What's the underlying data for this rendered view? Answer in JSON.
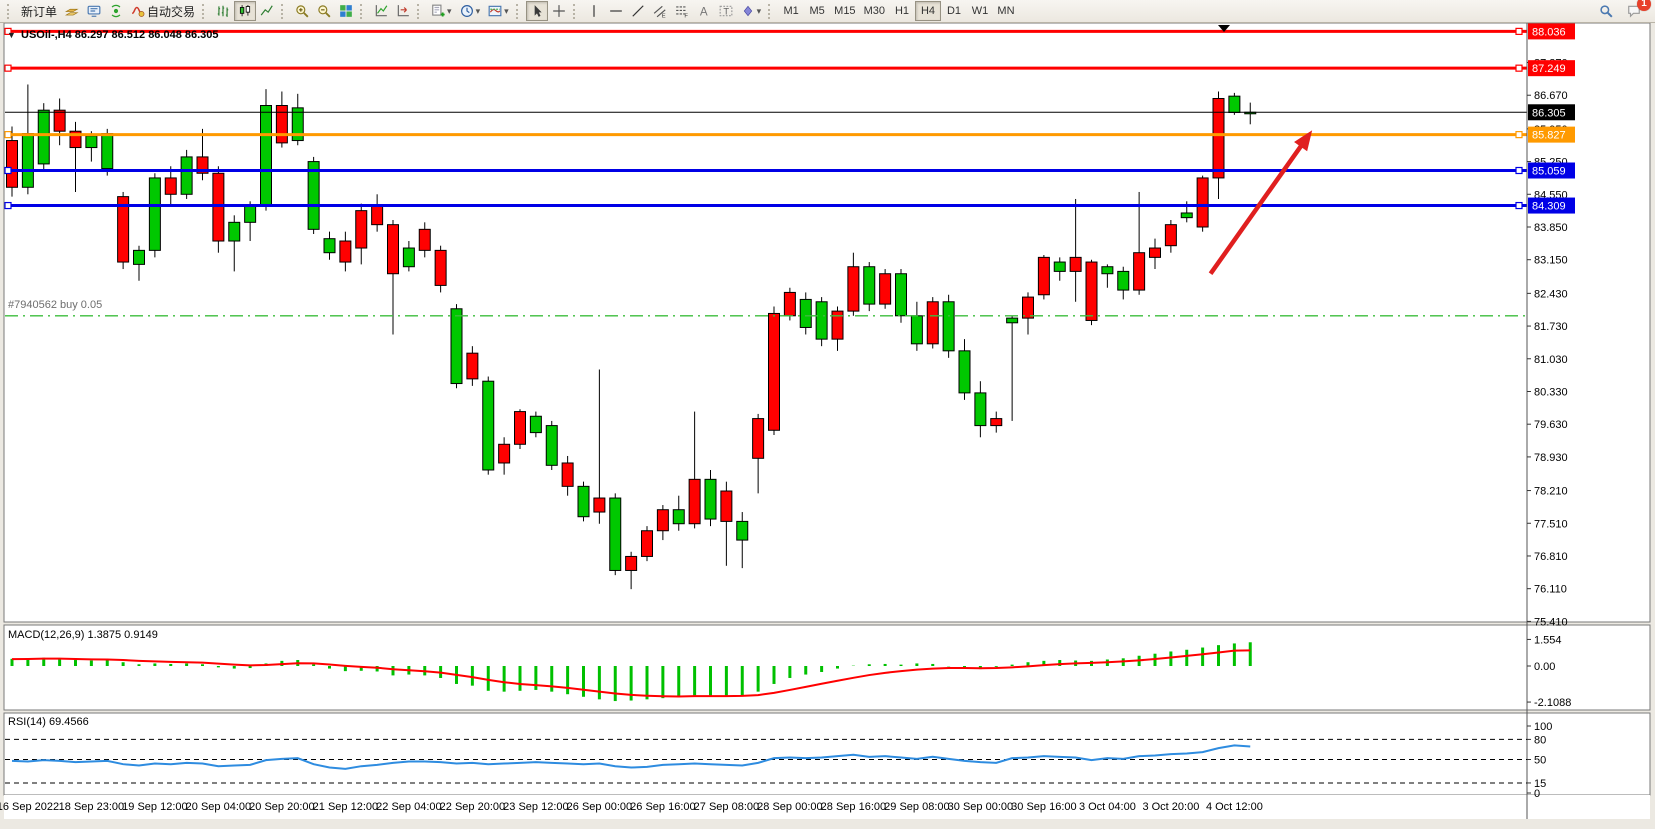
{
  "toolbar": {
    "new_order_label": "新订单",
    "auto_trading_label": "自动交易",
    "timeframes": [
      "M1",
      "M5",
      "M15",
      "M30",
      "H1",
      "H4",
      "D1",
      "W1",
      "MN"
    ],
    "active_timeframe": "H4",
    "notification_count": "1",
    "icons": [
      "layers-icon",
      "terminal-icon",
      "signal-icon",
      "autotrade-icon",
      "bar-chart-icon",
      "candlestick-icon",
      "line-chart-icon",
      "zoom-in-icon",
      "zoom-out-icon",
      "tile-windows-icon",
      "indicators-icon",
      "chart-shift-icon",
      "new-chart-icon",
      "period-icon",
      "template-icon",
      "cursor-icon",
      "crosshair-icon",
      "vertical-line-icon",
      "horizontal-line-icon",
      "trendline-icon",
      "channel-icon",
      "fibonacci-icon",
      "text-icon",
      "label-icon",
      "shapes-icon",
      "search-icon",
      "chat-icon"
    ]
  },
  "chart": {
    "title": "USOil-,H4  86.297 86.512 86.048 86.305",
    "order_label": "#7940562 buy 0.05",
    "macd_label": "MACD(12,26,9) 1.3875 0.9149",
    "rsi_label": "RSI(14) 69.4566"
  },
  "chart_data": {
    "type": "candlestick",
    "symbol": "USOil-",
    "timeframe": "H4",
    "last_ohlc": {
      "open": 86.297,
      "high": 86.512,
      "low": 86.048,
      "close": 86.305
    },
    "current_price": 86.305,
    "price_axis_ticks": [
      "87.370",
      "86.670",
      "85.950",
      "85.250",
      "84.550",
      "83.850",
      "83.150",
      "82.430",
      "81.730",
      "81.030",
      "80.330",
      "79.630",
      "78.930",
      "78.210",
      "77.510",
      "76.810",
      "76.110",
      "75.410"
    ],
    "price_lines": [
      {
        "label": "88.036",
        "price": 88.036,
        "color": "#ff0000",
        "width": 3,
        "handles": true
      },
      {
        "label": "87.249",
        "price": 87.249,
        "color": "#ff0000",
        "width": 3,
        "handles": true
      },
      {
        "label": "86.305",
        "price": 86.305,
        "color": "#000000",
        "width": 1,
        "handles": false
      },
      {
        "label": "85.827",
        "price": 85.827,
        "color": "#ff9a00",
        "width": 3,
        "handles": true
      },
      {
        "label": "85.059",
        "price": 85.059,
        "color": "#0000e6",
        "width": 3,
        "handles": true
      },
      {
        "label": "84.309",
        "price": 84.309,
        "color": "#0000e6",
        "width": 3,
        "handles": true
      }
    ],
    "buy_order": {
      "id_label": "#7940562 buy 0.05",
      "price": 81.95,
      "color": "#3dbd3d"
    },
    "time_labels": [
      "16 Sep 2022",
      "18 Sep 23:00",
      "19 Sep 12:00",
      "20 Sep 04:00",
      "20 Sep 20:00",
      "21 Sep 12:00",
      "22 Sep 04:00",
      "22 Sep 20:00",
      "23 Sep 12:00",
      "26 Sep 00:00",
      "26 Sep 16:00",
      "27 Sep 08:00",
      "28 Sep 00:00",
      "28 Sep 16:00",
      "29 Sep 08:00",
      "30 Sep 00:00",
      "30 Sep 16:00",
      "3 Oct 04:00",
      "3 Oct 20:00",
      "4 Oct 12:00"
    ],
    "candles": [
      [
        85.7,
        86.0,
        84.5,
        84.7,
        "r"
      ],
      [
        84.7,
        86.9,
        84.55,
        85.85,
        "g"
      ],
      [
        85.2,
        86.5,
        85.05,
        86.35,
        "g"
      ],
      [
        86.35,
        86.6,
        85.6,
        85.9,
        "r"
      ],
      [
        85.9,
        86.1,
        84.6,
        85.55,
        "r"
      ],
      [
        85.55,
        85.9,
        85.25,
        85.8,
        "g"
      ],
      [
        85.1,
        85.95,
        84.95,
        85.85,
        "g"
      ],
      [
        84.5,
        84.6,
        82.95,
        83.1,
        "r"
      ],
      [
        83.05,
        83.45,
        82.7,
        83.35,
        "g"
      ],
      [
        83.35,
        85.0,
        83.2,
        84.9,
        "g"
      ],
      [
        84.9,
        85.15,
        84.3,
        84.55,
        "r"
      ],
      [
        84.55,
        85.5,
        84.45,
        85.35,
        "g"
      ],
      [
        85.35,
        85.95,
        84.85,
        85.0,
        "r"
      ],
      [
        85.0,
        85.15,
        83.3,
        83.55,
        "r"
      ],
      [
        83.55,
        84.1,
        82.9,
        83.95,
        "g"
      ],
      [
        83.95,
        84.4,
        83.55,
        84.3,
        "g"
      ],
      [
        84.3,
        86.8,
        84.2,
        86.45,
        "g"
      ],
      [
        86.45,
        86.75,
        85.55,
        85.65,
        "r"
      ],
      [
        85.7,
        86.7,
        85.6,
        86.4,
        "g"
      ],
      [
        85.25,
        85.35,
        83.7,
        83.8,
        "g"
      ],
      [
        83.6,
        83.75,
        83.15,
        83.3,
        "g"
      ],
      [
        83.55,
        83.75,
        82.9,
        83.1,
        "r"
      ],
      [
        84.2,
        84.35,
        83.05,
        83.4,
        "r"
      ],
      [
        84.3,
        84.55,
        83.75,
        83.9,
        "r"
      ],
      [
        83.9,
        84.0,
        81.55,
        82.85,
        "r"
      ],
      [
        83.0,
        83.55,
        82.9,
        83.4,
        "g"
      ],
      [
        83.8,
        83.95,
        83.2,
        83.35,
        "r"
      ],
      [
        83.35,
        83.45,
        82.45,
        82.6,
        "r"
      ],
      [
        82.1,
        82.2,
        80.4,
        80.5,
        "g"
      ],
      [
        81.15,
        81.3,
        80.45,
        80.6,
        "r"
      ],
      [
        80.55,
        80.65,
        78.55,
        78.65,
        "g"
      ],
      [
        79.2,
        79.35,
        78.55,
        78.8,
        "r"
      ],
      [
        79.9,
        79.95,
        79.1,
        79.2,
        "r"
      ],
      [
        79.8,
        79.9,
        79.35,
        79.45,
        "g"
      ],
      [
        79.6,
        79.7,
        78.65,
        78.75,
        "g"
      ],
      [
        78.8,
        78.95,
        78.1,
        78.3,
        "r"
      ],
      [
        78.3,
        78.4,
        77.55,
        77.65,
        "g"
      ],
      [
        77.75,
        80.8,
        77.5,
        78.05,
        "r"
      ],
      [
        78.05,
        78.15,
        76.4,
        76.5,
        "g"
      ],
      [
        76.5,
        76.9,
        76.1,
        76.8,
        "r"
      ],
      [
        76.8,
        77.45,
        76.7,
        77.35,
        "r"
      ],
      [
        77.35,
        77.9,
        77.15,
        77.8,
        "r"
      ],
      [
        77.8,
        78.1,
        77.35,
        77.5,
        "g"
      ],
      [
        77.5,
        79.9,
        77.4,
        78.45,
        "r"
      ],
      [
        78.45,
        78.65,
        77.45,
        77.6,
        "g"
      ],
      [
        78.2,
        78.4,
        76.6,
        77.55,
        "r"
      ],
      [
        77.55,
        77.75,
        76.55,
        77.15,
        "g"
      ],
      [
        79.75,
        79.85,
        78.15,
        78.9,
        "r"
      ],
      [
        82.0,
        82.15,
        79.4,
        79.5,
        "r"
      ],
      [
        82.45,
        82.55,
        81.85,
        81.95,
        "r"
      ],
      [
        82.3,
        82.45,
        81.55,
        81.7,
        "g"
      ],
      [
        82.25,
        82.35,
        81.3,
        81.45,
        "g"
      ],
      [
        81.45,
        82.15,
        81.2,
        82.05,
        "r"
      ],
      [
        82.05,
        83.3,
        81.95,
        83.0,
        "r"
      ],
      [
        83.0,
        83.1,
        82.05,
        82.2,
        "g"
      ],
      [
        82.2,
        82.95,
        82.1,
        82.85,
        "r"
      ],
      [
        82.85,
        82.95,
        81.8,
        81.95,
        "g"
      ],
      [
        81.95,
        82.25,
        81.2,
        81.35,
        "g"
      ],
      [
        81.35,
        82.35,
        81.25,
        82.25,
        "r"
      ],
      [
        82.25,
        82.4,
        81.05,
        81.2,
        "g"
      ],
      [
        81.2,
        81.45,
        80.15,
        80.3,
        "g"
      ],
      [
        80.3,
        80.55,
        79.35,
        79.6,
        "g"
      ],
      [
        79.6,
        79.9,
        79.45,
        79.75,
        "r"
      ],
      [
        81.8,
        81.95,
        79.7,
        81.9,
        "g"
      ],
      [
        81.9,
        82.45,
        81.55,
        82.35,
        "r"
      ],
      [
        83.2,
        83.25,
        82.3,
        82.4,
        "r"
      ],
      [
        83.1,
        83.2,
        82.7,
        82.9,
        "g"
      ],
      [
        82.9,
        84.45,
        82.25,
        83.2,
        "r"
      ],
      [
        83.1,
        83.15,
        81.75,
        81.85,
        "r"
      ],
      [
        82.85,
        83.05,
        82.55,
        83.0,
        "g"
      ],
      [
        82.9,
        83.0,
        82.3,
        82.5,
        "g"
      ],
      [
        82.5,
        84.6,
        82.4,
        83.3,
        "r"
      ],
      [
        83.4,
        83.6,
        82.95,
        83.2,
        "r"
      ],
      [
        83.9,
        84.0,
        83.3,
        83.45,
        "r"
      ],
      [
        84.05,
        84.4,
        83.95,
        84.15,
        "g"
      ],
      [
        84.9,
        84.95,
        83.75,
        83.85,
        "r"
      ],
      [
        86.6,
        86.75,
        84.45,
        84.9,
        "r"
      ],
      [
        86.3,
        86.72,
        86.25,
        86.65,
        "g"
      ],
      [
        86.297,
        86.512,
        86.048,
        86.305,
        "g"
      ]
    ],
    "macd": {
      "label": "MACD(12,26,9) 1.3875 0.9149",
      "value": 1.3875,
      "signal_value": 0.9149,
      "axis_ticks": [
        "1.554",
        "0.00",
        "-2.1088"
      ],
      "histogram": [
        0.42,
        0.45,
        0.48,
        0.42,
        0.35,
        0.32,
        0.35,
        0.22,
        0.1,
        0.15,
        0.12,
        0.15,
        0.1,
        -0.08,
        -0.15,
        -0.12,
        0.15,
        0.3,
        0.35,
        0.1,
        -0.15,
        -0.3,
        -0.28,
        -0.32,
        -0.55,
        -0.5,
        -0.55,
        -0.7,
        -1.05,
        -1.15,
        -1.45,
        -1.5,
        -1.45,
        -1.4,
        -1.5,
        -1.65,
        -1.8,
        -1.95,
        -2.05,
        -2.02,
        -1.95,
        -1.88,
        -1.8,
        -1.72,
        -1.73,
        -1.78,
        -1.7,
        -1.5,
        -1.05,
        -0.7,
        -0.5,
        -0.35,
        -0.15,
        0.02,
        0.1,
        0.12,
        0.08,
        0.15,
        0.12,
        -0.02,
        -0.12,
        -0.18,
        -0.05,
        0.08,
        0.22,
        0.3,
        0.35,
        0.32,
        0.3,
        0.38,
        0.45,
        0.6,
        0.72,
        0.85,
        0.95,
        1.08,
        1.22,
        1.32,
        1.3875
      ],
      "signal": [
        0.4,
        0.41,
        0.43,
        0.43,
        0.41,
        0.39,
        0.38,
        0.35,
        0.3,
        0.27,
        0.24,
        0.22,
        0.2,
        0.14,
        0.08,
        0.04,
        0.06,
        0.11,
        0.16,
        0.15,
        0.09,
        0.01,
        -0.05,
        -0.1,
        -0.19,
        -0.25,
        -0.31,
        -0.39,
        -0.52,
        -0.65,
        -0.81,
        -0.95,
        -1.05,
        -1.12,
        -1.19,
        -1.28,
        -1.39,
        -1.5,
        -1.61,
        -1.69,
        -1.74,
        -1.77,
        -1.78,
        -1.76,
        -1.76,
        -1.76,
        -1.75,
        -1.7,
        -1.57,
        -1.4,
        -1.22,
        -1.04,
        -0.86,
        -0.69,
        -0.53,
        -0.4,
        -0.3,
        -0.21,
        -0.15,
        -0.12,
        -0.12,
        -0.13,
        -0.12,
        -0.08,
        -0.02,
        0.05,
        0.11,
        0.15,
        0.18,
        0.22,
        0.27,
        0.33,
        0.41,
        0.5,
        0.59,
        0.69,
        0.79,
        0.9,
        0.9149
      ]
    },
    "rsi": {
      "label": "RSI(14) 69.4566",
      "value": 69.4566,
      "axis_ticks": [
        "100",
        "80",
        "50",
        "15",
        "0"
      ],
      "levels": [
        80,
        50,
        15
      ],
      "values": [
        48,
        47,
        49,
        48,
        46,
        47,
        48,
        43,
        41,
        44,
        43,
        45,
        44,
        40,
        41,
        42,
        49,
        51,
        52,
        43,
        38,
        36,
        40,
        42,
        45,
        47,
        47,
        46,
        44,
        45,
        43,
        44,
        45,
        46,
        45,
        44,
        43,
        44,
        40,
        38,
        39,
        42,
        43,
        44,
        43,
        42,
        41,
        45,
        52,
        53,
        52,
        53,
        55,
        57,
        54,
        55,
        53,
        51,
        54,
        51,
        48,
        46,
        45,
        52,
        53,
        55,
        54,
        53,
        49,
        52,
        51,
        55,
        56,
        58,
        59,
        61,
        67,
        71,
        69.46
      ]
    },
    "trend_arrow": {
      "from_bar": 75.5,
      "from_price": 82.85,
      "to_bar": 81.9,
      "to_price": 85.92,
      "color": "#e01f1f"
    },
    "colors": {
      "bull": "#00c800",
      "bear": "#ff0000",
      "macd_histogram": "#00c000",
      "macd_signal": "#ff0000",
      "rsi_line": "#2e8ce0",
      "buy_line": "#3dbd3d",
      "background": "#ffffff"
    }
  }
}
